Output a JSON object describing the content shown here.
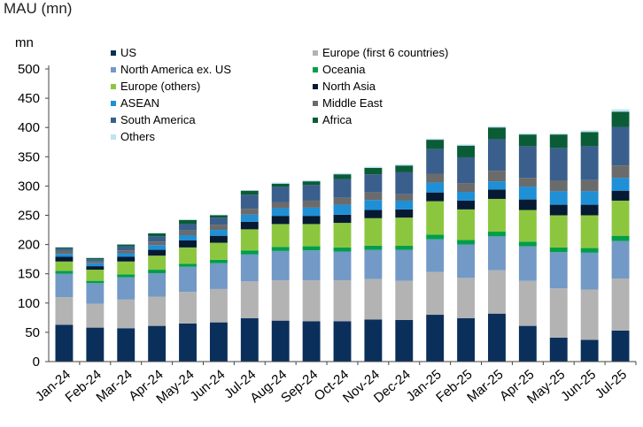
{
  "chart_data": {
    "type": "bar",
    "stacked": true,
    "title": "MAU (mn)",
    "ylabel": "mn",
    "ylim": [
      0,
      500
    ],
    "yticks": [
      0,
      50,
      100,
      150,
      200,
      250,
      300,
      350,
      400,
      450,
      500
    ],
    "grid": false,
    "legend_position": "top-left",
    "categories": [
      "Jan-24",
      "Feb-24",
      "Mar-24",
      "Apr-24",
      "May-24",
      "Jun-24",
      "Jul-24",
      "Aug-24",
      "Sep-24",
      "Oct-24",
      "Nov-24",
      "Dec-24",
      "Jan-25",
      "Feb-25",
      "Mar-25",
      "Apr-25",
      "May-25",
      "Jun-25",
      "Jul-25"
    ],
    "series": [
      {
        "name": "US",
        "color": "#0b2f5b",
        "values": [
          63,
          58,
          57,
          61,
          65,
          67,
          74,
          70,
          69,
          69,
          72,
          71,
          80,
          74,
          82,
          61,
          41,
          37,
          53
        ]
      },
      {
        "name": "Europe (first 6 countries)",
        "color": "#b3b3b3",
        "values": [
          47,
          41,
          49,
          50,
          54,
          57,
          63,
          69,
          70,
          70,
          69,
          67,
          73,
          69,
          74,
          77,
          84,
          86,
          89
        ]
      },
      {
        "name": "North America ex. US",
        "color": "#7399c6",
        "values": [
          40,
          35,
          38,
          40,
          43,
          44,
          46,
          50,
          51,
          49,
          50,
          53,
          56,
          57,
          58,
          59,
          62,
          63,
          64
        ]
      },
      {
        "name": "Oceania",
        "color": "#009e49",
        "values": [
          5,
          4,
          5,
          6,
          5,
          6,
          7,
          7,
          7,
          7,
          7,
          7,
          8,
          8,
          8,
          8,
          8,
          8,
          9
        ]
      },
      {
        "name": "Europe (others)",
        "color": "#8cc63f",
        "values": [
          16,
          19,
          22,
          24,
          28,
          29,
          36,
          39,
          38,
          42,
          47,
          48,
          57,
          52,
          56,
          54,
          55,
          56,
          60
        ]
      },
      {
        "name": "North Asia",
        "color": "#061a33",
        "values": [
          8,
          6,
          8,
          10,
          12,
          12,
          13,
          14,
          14,
          14,
          14,
          14,
          15,
          15,
          16,
          18,
          18,
          18,
          17
        ]
      },
      {
        "name": "ASEAN",
        "color": "#1f8fd6",
        "values": [
          5,
          5,
          6,
          8,
          9,
          10,
          12,
          13,
          14,
          17,
          17,
          15,
          17,
          15,
          14,
          22,
          23,
          23,
          22
        ]
      },
      {
        "name": "Middle East",
        "color": "#6b6b6b",
        "values": [
          5,
          3,
          5,
          6,
          8,
          9,
          10,
          10,
          12,
          12,
          13,
          11,
          15,
          15,
          18,
          15,
          18,
          19,
          21
        ]
      },
      {
        "name": "South America",
        "color": "#3a5f8c",
        "values": [
          4,
          4,
          7,
          9,
          11,
          12,
          24,
          27,
          27,
          32,
          31,
          38,
          42,
          44,
          54,
          54,
          56,
          58,
          66
        ]
      },
      {
        "name": "Africa",
        "color": "#0a5c36",
        "values": [
          2,
          2,
          3,
          5,
          7,
          4,
          7,
          5,
          6,
          8,
          11,
          11,
          16,
          20,
          20,
          20,
          23,
          24,
          26
        ]
      },
      {
        "name": "Others",
        "color": "#bfe3f2",
        "values": [
          1,
          1,
          1,
          1,
          1,
          1,
          1,
          2,
          2,
          2,
          2,
          2,
          2,
          2,
          2,
          2,
          2,
          3,
          4
        ]
      }
    ]
  }
}
